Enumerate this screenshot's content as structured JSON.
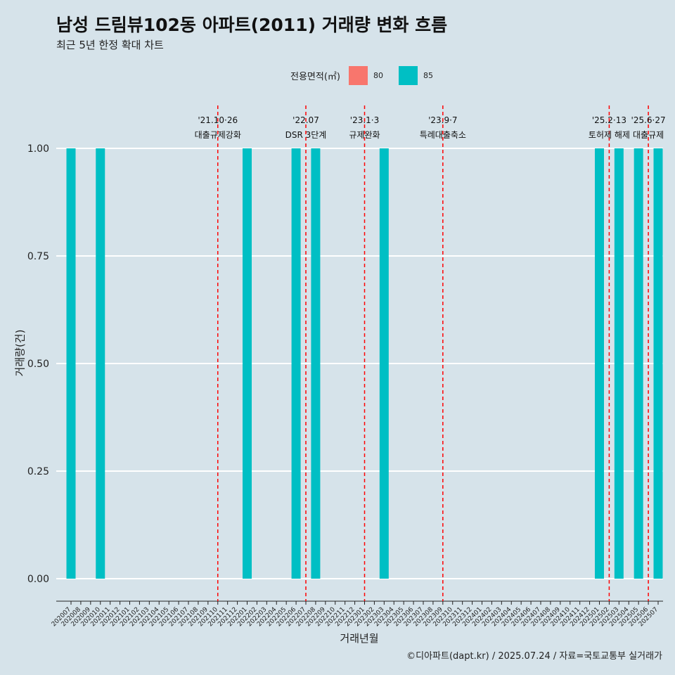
{
  "title": "남성 드림뷰102동 아파트(2011) 거래량 변화 흐름",
  "subtitle": "최근 5년 한정 확대 차트",
  "caption": "©디아파트(dapt.kr) / 2025.07.24 / 자료=국토교통부 실거래가",
  "legend": {
    "title": "전용면적(㎡)",
    "items": [
      {
        "label": "80",
        "color": "#f8766d"
      },
      {
        "label": "85",
        "color": "#00bfc4"
      }
    ]
  },
  "chart_data": {
    "type": "bar",
    "title": "남성 드림뷰102동 아파트(2011) 거래량 변화 흐름",
    "subtitle": "최근 5년 한정 확대 차트",
    "xlabel": "거래년월",
    "ylabel": "거래량(건)",
    "ylim": [
      0,
      1
    ],
    "yticks": [
      0,
      0.25,
      0.5,
      0.75,
      1
    ],
    "ytick_labels": [
      "0.00",
      "0.25",
      "0.50",
      "0.75",
      "1.00"
    ],
    "grid": true,
    "legend_position": "top",
    "categories": [
      "202007",
      "202008",
      "202009",
      "202010",
      "202011",
      "202012",
      "202101",
      "202102",
      "202103",
      "202104",
      "202105",
      "202106",
      "202107",
      "202108",
      "202109",
      "202110",
      "202111",
      "202112",
      "202201",
      "202202",
      "202203",
      "202204",
      "202205",
      "202206",
      "202207",
      "202208",
      "202209",
      "202210",
      "202211",
      "202212",
      "202301",
      "202302",
      "202303",
      "202304",
      "202305",
      "202306",
      "202307",
      "202308",
      "202309",
      "202310",
      "202311",
      "202312",
      "202401",
      "202402",
      "202403",
      "202404",
      "202405",
      "202406",
      "202407",
      "202408",
      "202409",
      "202410",
      "202411",
      "202412",
      "202501",
      "202502",
      "202503",
      "202504",
      "202505",
      "202506",
      "202507"
    ],
    "series": [
      {
        "name": "80",
        "color": "#f8766d",
        "values": [
          0,
          0,
          0,
          0,
          0,
          0,
          0,
          0,
          0,
          0,
          0,
          0,
          0,
          0,
          0,
          0,
          0,
          0,
          0,
          0,
          0,
          0,
          0,
          0,
          0,
          0,
          0,
          0,
          0,
          0,
          0,
          0,
          0,
          0,
          0,
          0,
          0,
          0,
          0,
          0,
          0,
          0,
          0,
          0,
          0,
          0,
          0,
          0,
          0,
          0,
          0,
          0,
          0,
          0,
          0,
          0,
          0,
          0,
          0,
          0,
          0
        ]
      },
      {
        "name": "85",
        "color": "#00bfc4",
        "values": [
          1,
          0,
          0,
          1,
          0,
          0,
          0,
          0,
          0,
          0,
          0,
          0,
          0,
          0,
          0,
          0,
          0,
          0,
          1,
          0,
          0,
          0,
          0,
          1,
          0,
          1,
          0,
          0,
          0,
          0,
          0,
          0,
          1,
          0,
          0,
          0,
          0,
          0,
          0,
          0,
          0,
          0,
          0,
          0,
          0,
          0,
          0,
          0,
          0,
          0,
          0,
          0,
          0,
          0,
          1,
          0,
          1,
          0,
          1,
          0,
          1
        ]
      }
    ],
    "annotations": [
      {
        "date": "'21.10·26",
        "text": "대출규제강화",
        "x": "202110"
      },
      {
        "date": "'22.07",
        "text": "DSR 3단계",
        "x": "202207"
      },
      {
        "date": "'23.1·3",
        "text": "규제완화",
        "x": "202301"
      },
      {
        "date": "'23.9·7",
        "text": "특례대출축소",
        "x": "202309"
      },
      {
        "date": "'25.2·13",
        "text": "토허제 해제",
        "x": "202502"
      },
      {
        "date": "'25.6·27",
        "text": "대출규제",
        "x": "202506"
      }
    ]
  }
}
